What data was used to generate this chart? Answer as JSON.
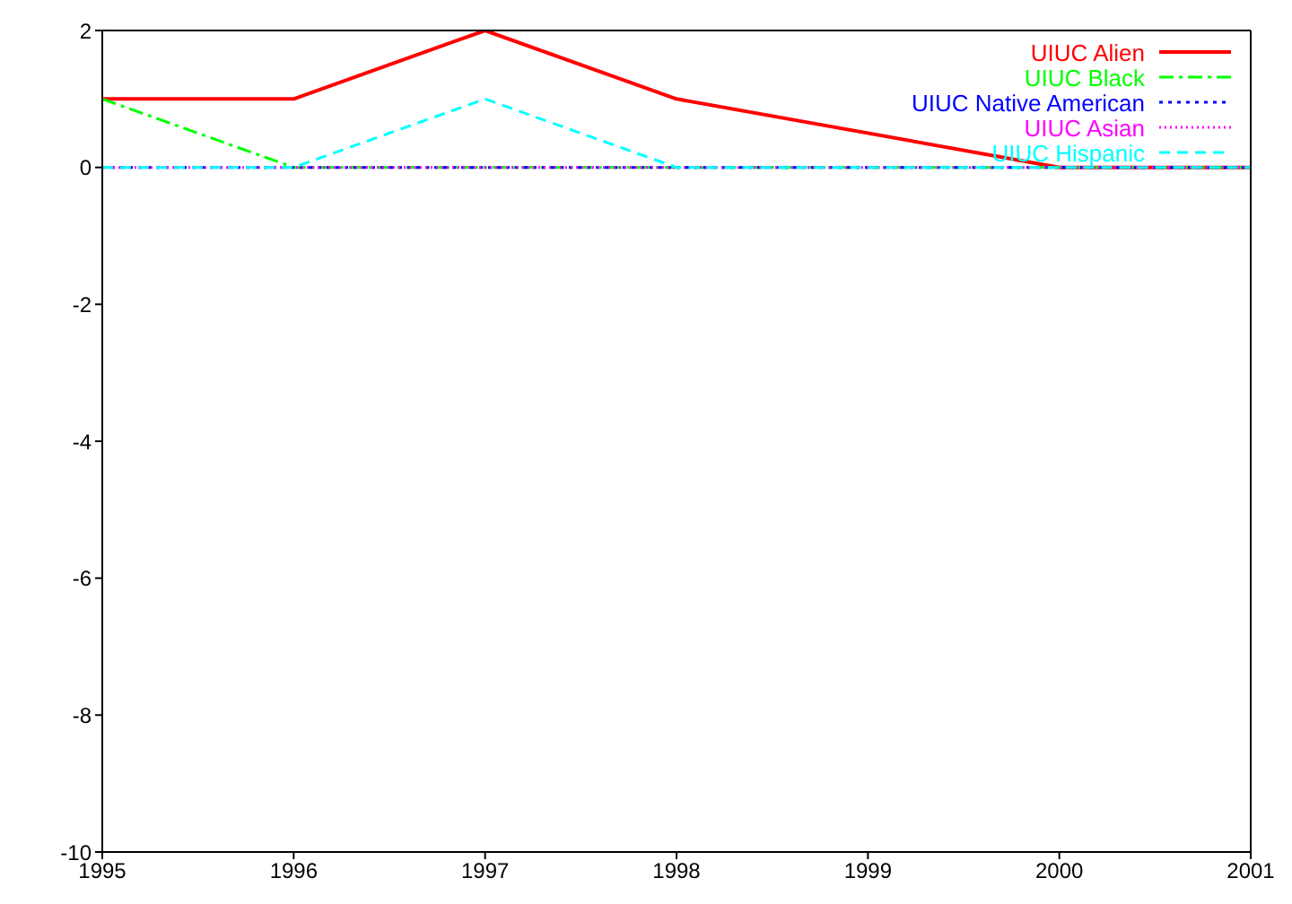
{
  "chart_data": {
    "type": "line",
    "x": [
      1995,
      1996,
      1997,
      1998,
      1999,
      2000,
      2001
    ],
    "xlim": [
      1995,
      2001
    ],
    "xticks": [
      1995,
      1996,
      1997,
      1998,
      1999,
      2000,
      2001
    ],
    "ylim": [
      -10,
      2
    ],
    "yticks": [
      -10,
      -8,
      -6,
      -4,
      -2,
      0,
      2
    ],
    "grid": false,
    "legend": "top right",
    "marker": "none",
    "series": [
      {
        "name": "UIUC Alien",
        "color": "#ff0000",
        "line_style": "solid",
        "x": [
          1995,
          1996,
          1997,
          1998,
          2000,
          2001
        ],
        "values": [
          1,
          1,
          2,
          1,
          0,
          0
        ]
      },
      {
        "name": "UIUC Black",
        "color": "#00ff00",
        "line_style": "dashed",
        "values": [
          1,
          0,
          0,
          0,
          0,
          0,
          0
        ]
      },
      {
        "name": "UIUC Native American",
        "color": "#0000ff",
        "line_style": "dotted",
        "values": [
          0,
          0,
          0,
          0,
          0,
          0,
          0
        ]
      },
      {
        "name": "UIUC Asian",
        "color": "#ff00ff",
        "line_style": "dotted",
        "values": [
          0,
          0,
          0,
          0,
          0,
          0,
          0
        ]
      },
      {
        "name": "UIUC Hispanic",
        "color": "#00ffff",
        "line_style": "dashed",
        "values": [
          0,
          0,
          1,
          0,
          0,
          0,
          0
        ]
      }
    ]
  }
}
